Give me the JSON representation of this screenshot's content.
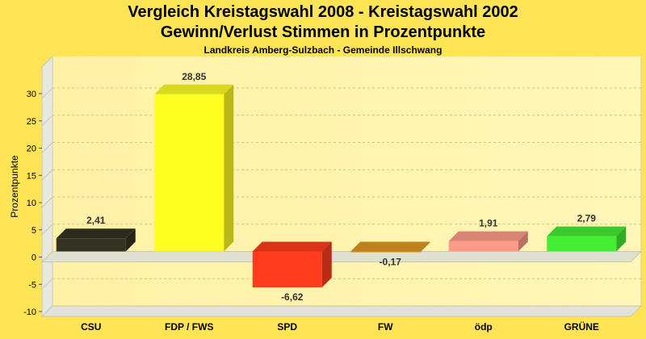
{
  "title": "Vergleich Kreistagswahl 2008 - Kreistagswahl 2002",
  "subtitle": "Gewinn/Verlust Stimmen in Prozentpunkte",
  "region": "Landkreis Amberg-Sulzbach - Gemeinde Illschwang",
  "chart_data": {
    "type": "bar",
    "ylabel": "Prozentpunkte",
    "xlabel": "",
    "ylim": [
      -12,
      33
    ],
    "yticks": [
      -10,
      -5,
      0,
      5,
      10,
      15,
      20,
      25,
      30
    ],
    "grid": true,
    "legend": "none",
    "categories": [
      "CSU",
      "FDP / FWS",
      "SPD",
      "FW",
      "ödp",
      "GRÜNE"
    ],
    "values": [
      2.41,
      28.85,
      -6.62,
      -0.17,
      1.91,
      2.79
    ],
    "value_labels": [
      "2,41",
      "28,85",
      "-6,62",
      "-0,17",
      "1,91",
      "2,79"
    ],
    "colors": [
      "#333322",
      "#ffff22",
      "#ff3c1e",
      "#dd9922",
      "#ff9b88",
      "#44ee33"
    ]
  }
}
